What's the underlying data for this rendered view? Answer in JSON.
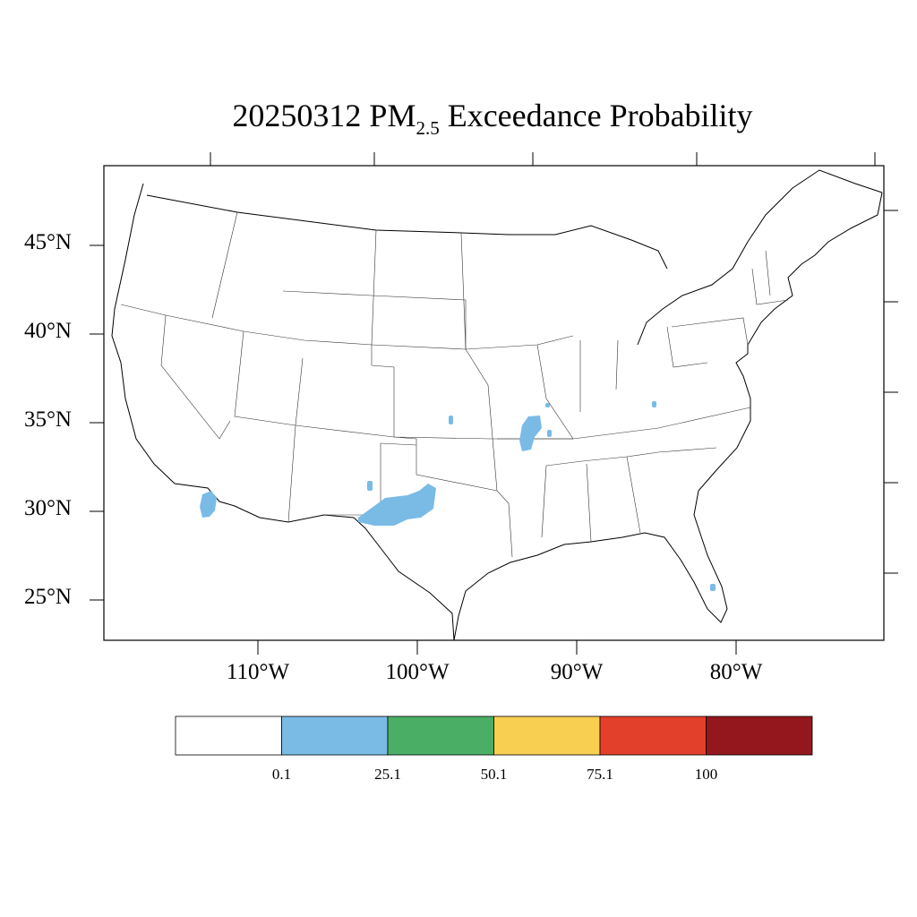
{
  "title": {
    "date": "20250312",
    "pollutant": "PM",
    "pollutant_subscript": "2.5",
    "suffix": "Exceedance Probability"
  },
  "map": {
    "latitude_labels": [
      "45°N",
      "40°N",
      "35°N",
      "30°N",
      "25°N"
    ],
    "longitude_labels": [
      "110°W",
      "100°W",
      "90°W",
      "80°W"
    ],
    "shading_color": "#7abbe6",
    "outline_color": "#000000"
  },
  "colorbar": {
    "colors": [
      "#ffffff",
      "#7abbe6",
      "#4aaf65",
      "#f9cf52",
      "#e2402a",
      "#93171c"
    ],
    "labels": [
      "0.1",
      "25.1",
      "50.1",
      "75.1",
      "100"
    ]
  }
}
